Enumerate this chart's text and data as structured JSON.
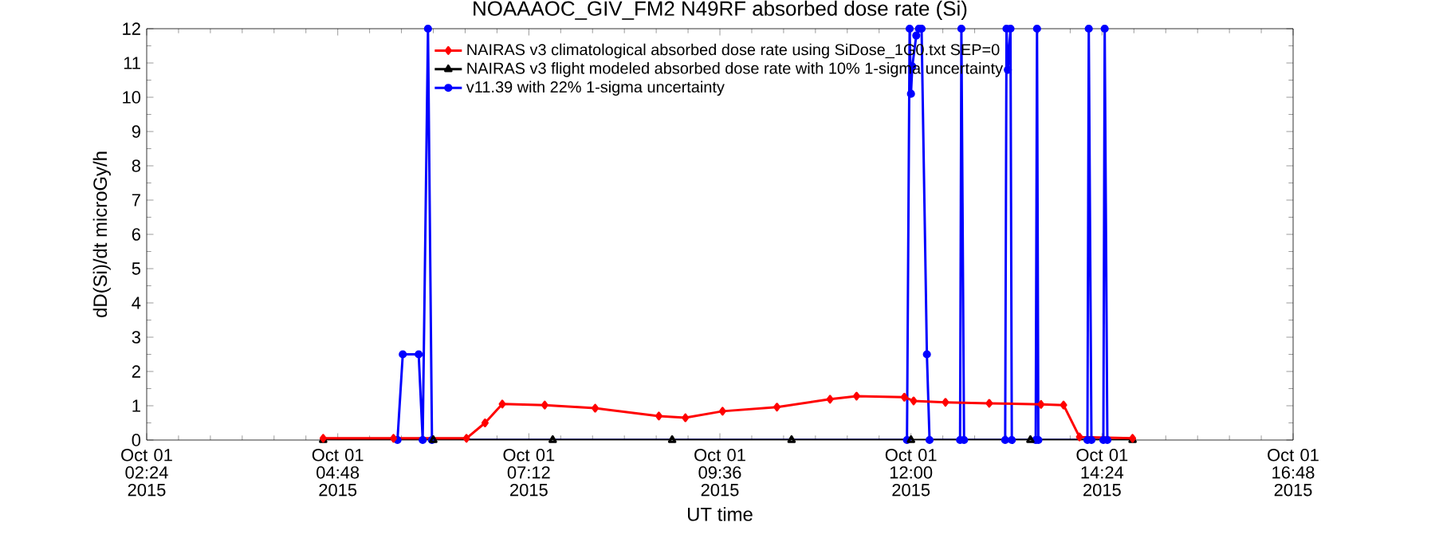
{
  "chart_data": {
    "type": "line",
    "title": "NOAAAOC_GIV_FM2   N49RF  absorbed dose rate (Si)",
    "xlabel": "UT time",
    "ylabel": "dD(Si)/dt microGy/h",
    "xlim": [
      "2015-10-01T02:24",
      "2015-10-01T16:48"
    ],
    "ylim": [
      0,
      12
    ],
    "yticks": [
      0,
      1,
      2,
      3,
      4,
      5,
      6,
      7,
      8,
      9,
      10,
      11,
      12
    ],
    "xticks": [
      {
        "value": "2015-10-01T02:24",
        "label": "Oct 01 02:24 2015"
      },
      {
        "value": "2015-10-01T04:48",
        "label": "Oct 01 04:48 2015"
      },
      {
        "value": "2015-10-01T07:12",
        "label": "Oct 01 07:12 2015"
      },
      {
        "value": "2015-10-01T09:36",
        "label": "Oct 01 09:36 2015"
      },
      {
        "value": "2015-10-01T12:00",
        "label": "Oct 01 12:00 2015"
      },
      {
        "value": "2015-10-01T14:24",
        "label": "Oct 01 14:24 2015"
      },
      {
        "value": "2015-10-01T16:48",
        "label": "Oct 01 16:48 2015"
      }
    ],
    "legend": "top",
    "grid": false,
    "series": [
      {
        "name": "NAIRAS v3 climatological absorbed dose rate using SiDose_1G0.txt SEP=0",
        "color": "#ff0000",
        "marker": "diamond",
        "x": [
          "2015-10-01T04:37",
          "2015-10-01T05:30",
          "2015-10-01T06:25",
          "2015-10-01T06:39",
          "2015-10-01T06:52",
          "2015-10-01T07:24",
          "2015-10-01T08:02",
          "2015-10-01T08:50",
          "2015-10-01T09:10",
          "2015-10-01T09:38",
          "2015-10-01T10:19",
          "2015-10-01T10:59",
          "2015-10-01T11:19",
          "2015-10-01T11:55",
          "2015-10-01T12:02",
          "2015-10-01T12:26",
          "2015-10-01T12:59",
          "2015-10-01T13:38",
          "2015-10-01T13:55",
          "2015-10-01T14:07",
          "2015-10-01T14:47"
        ],
        "values": [
          0.05,
          0.05,
          0.05,
          0.5,
          1.05,
          1.02,
          0.93,
          0.7,
          0.65,
          0.84,
          0.96,
          1.19,
          1.28,
          1.25,
          1.14,
          1.1,
          1.07,
          1.04,
          1.02,
          0.09,
          0.05
        ]
      },
      {
        "name": "NAIRAS v3 flight modeled absorbed dose rate with 10% 1-sigma uncertainty",
        "color": "#000000",
        "marker": "triangle",
        "x": [
          "2015-10-01T04:37",
          "2015-10-01T06:00",
          "2015-10-01T07:30",
          "2015-10-01T09:00",
          "2015-10-01T10:30",
          "2015-10-01T12:00",
          "2015-10-01T13:30",
          "2015-10-01T14:47"
        ],
        "values": [
          0,
          0,
          0,
          0,
          0,
          0,
          0,
          0
        ]
      },
      {
        "name": "v11.39 with 22% 1-sigma uncertainty",
        "color": "#0000ff",
        "marker": "circle",
        "x": [
          "2015-10-01T05:33",
          "2015-10-01T05:37",
          "2015-10-01T05:49",
          "2015-10-01T05:52",
          "2015-10-01T05:56",
          "2015-10-01T05:59",
          "2015-10-01T11:57",
          "2015-10-01T11:59",
          "2015-10-01T12:00",
          "2015-10-01T12:01",
          "2015-10-01T12:04",
          "2015-10-01T12:06",
          "2015-10-01T12:08",
          "2015-10-01T12:12",
          "2015-10-01T12:14",
          "2015-10-01T12:37",
          "2015-10-01T12:38",
          "2015-10-01T12:40",
          "2015-10-01T13:11",
          "2015-10-01T13:12",
          "2015-10-01T13:13",
          "2015-10-01T13:15",
          "2015-10-01T13:16",
          "2015-10-01T13:34",
          "2015-10-01T13:35",
          "2015-10-01T13:36",
          "2015-10-01T14:13",
          "2015-10-01T14:14",
          "2015-10-01T14:16",
          "2015-10-01T14:25",
          "2015-10-01T14:26",
          "2015-10-01T14:28"
        ],
        "values": [
          0,
          2.5,
          2.5,
          0,
          12,
          0,
          0,
          12,
          10.1,
          10.9,
          11.8,
          12,
          12,
          2.5,
          0,
          0,
          12,
          0,
          0,
          12,
          10.8,
          12,
          0,
          0,
          12,
          0,
          0,
          12,
          0,
          0,
          12,
          0
        ]
      }
    ]
  }
}
